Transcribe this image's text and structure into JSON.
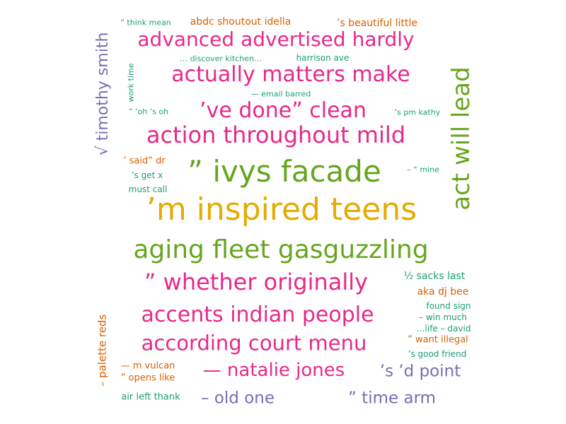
{
  "colors": {
    "magenta": "#e7298a",
    "green": "#66a61e",
    "gold": "#e6ab02",
    "teal": "#1b9e77",
    "orange": "#d95f02",
    "purple": "#7570b3"
  },
  "words": [
    {
      "text": "’m inspired teens",
      "color": "gold"
    },
    {
      "text": "” ivys facade",
      "color": "green"
    },
    {
      "text": "aging fleet gasguzzling",
      "color": "green"
    },
    {
      "text": "act will lead",
      "color": "green"
    },
    {
      "text": "action throughout mild",
      "color": "magenta"
    },
    {
      "text": "actually matters make",
      "color": "magenta"
    },
    {
      "text": "advanced advertised hardly",
      "color": "magenta"
    },
    {
      "text": "’ve done” clean",
      "color": "magenta"
    },
    {
      "text": "” whether originally",
      "color": "magenta"
    },
    {
      "text": "accents indian people",
      "color": "magenta"
    },
    {
      "text": "according court menu",
      "color": "magenta"
    },
    {
      "text": "— natalie jones",
      "color": "magenta"
    },
    {
      "text": "√ timothy smith",
      "color": "purple"
    },
    {
      "text": "’s ’d point",
      "color": "purple"
    },
    {
      "text": "– old one",
      "color": "purple"
    },
    {
      "text": "” time arm",
      "color": "purple"
    },
    {
      "text": "– palette reds",
      "color": "orange"
    },
    {
      "text": "abdc shoutout idella",
      "color": "orange"
    },
    {
      "text": "’s beautiful little",
      "color": "orange"
    },
    {
      "text": "aka dj bee",
      "color": "orange"
    },
    {
      "text": "” want illegal",
      "color": "orange"
    },
    {
      "text": "— m vulcan",
      "color": "orange"
    },
    {
      "text": "” opens like",
      "color": "orange"
    },
    {
      "text": "’ said” dr",
      "color": "orange"
    },
    {
      "text": "” think mean",
      "color": "teal"
    },
    {
      "text": "… discover kitchen…",
      "color": "teal"
    },
    {
      "text": "harrison ave",
      "color": "teal"
    },
    {
      "text": "— email barred",
      "color": "teal"
    },
    {
      "text": "work time",
      "color": "teal"
    },
    {
      "text": "” ’oh ’s oh",
      "color": "teal"
    },
    {
      "text": "’s pm kathy",
      "color": "teal"
    },
    {
      "text": "’s get x",
      "color": "teal"
    },
    {
      "text": "must call",
      "color": "teal"
    },
    {
      "text": "– “ mine",
      "color": "teal"
    },
    {
      "text": "½ sacks last",
      "color": "teal"
    },
    {
      "text": "found sign",
      "color": "teal"
    },
    {
      "text": "– win much",
      "color": "teal"
    },
    {
      "text": "…life – david",
      "color": "teal"
    },
    {
      "text": "’s good friend",
      "color": "teal"
    },
    {
      "text": "air left thank",
      "color": "teal"
    }
  ]
}
